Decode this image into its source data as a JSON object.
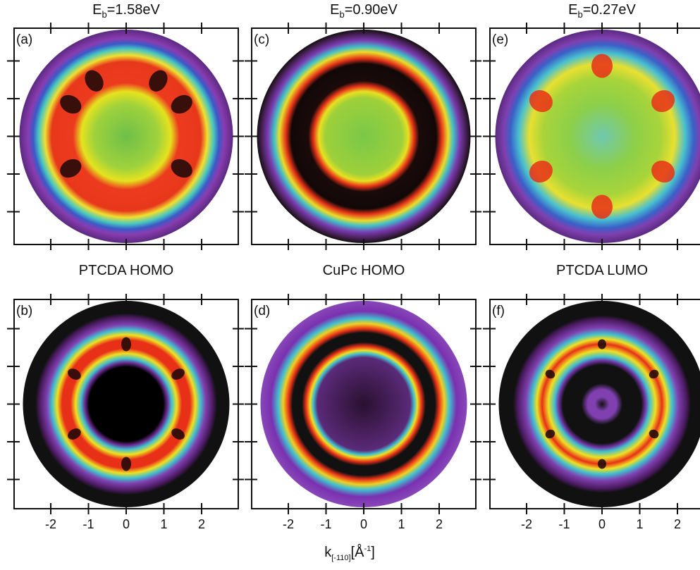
{
  "panels": [
    {
      "title": {
        "main": "E",
        "sub": "b",
        "rest": "=1.58eV"
      },
      "label": "(a)"
    },
    {
      "title": {
        "main": "E",
        "sub": "b",
        "rest": "=0.90eV"
      },
      "label": "(c)"
    },
    {
      "title": {
        "main": "E",
        "sub": "b",
        "rest": "=0.27eV"
      },
      "label": "(e)"
    },
    {
      "title": {
        "text": "PTCDA HOMO"
      },
      "label": "(b)"
    },
    {
      "title": {
        "text": "CuPc HOMO"
      },
      "label": "(d)"
    },
    {
      "title": {
        "text": "PTCDA LUMO"
      },
      "label": "(f)"
    }
  ],
  "x_axis": {
    "ticks": [
      -2,
      -1,
      0,
      1,
      2
    ],
    "label": {
      "main": "k",
      "sub": "[-110]",
      "open": "[Å",
      "sup": "-1",
      "close": "]"
    }
  }
}
